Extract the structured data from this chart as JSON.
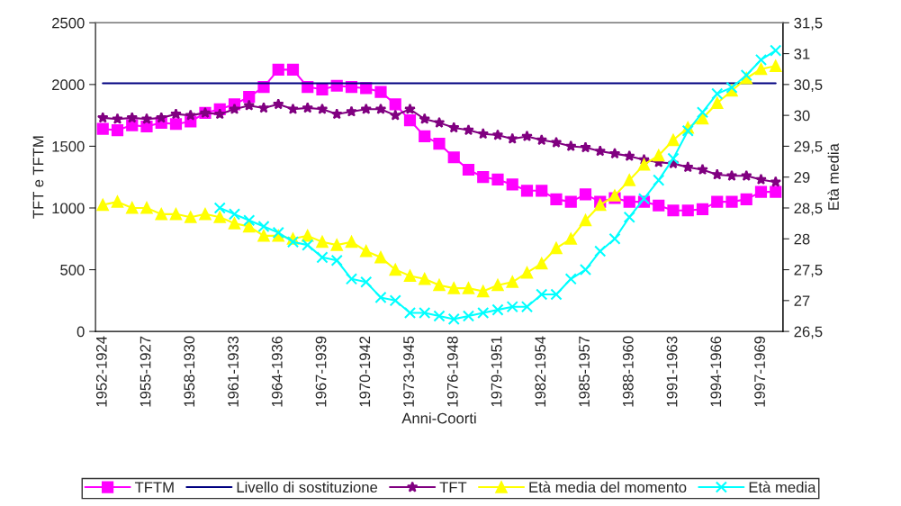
{
  "chart_data": {
    "type": "line",
    "xlabel": "Anni-Coorti",
    "ylabel": "TFT e TFTM",
    "y2label": "Età media",
    "categories": [
      "1952-1924",
      null,
      null,
      "1955-1927",
      null,
      null,
      "1958-1930",
      null,
      null,
      "1961-1933",
      null,
      null,
      "1964-1936",
      null,
      null,
      "1967-1939",
      null,
      null,
      "1970-1942",
      null,
      null,
      "1973-1945",
      null,
      null,
      "1976-1948",
      null,
      null,
      "1979-1951",
      null,
      null,
      "1982-1954",
      null,
      null,
      "1985-1957",
      null,
      null,
      "1988-1960",
      null,
      null,
      "1991-1963",
      null,
      null,
      "1994-1966",
      null,
      null,
      "1997-1969",
      null
    ],
    "ylim": [
      0,
      2500
    ],
    "yticks": [
      0,
      500,
      1000,
      1500,
      2000,
      2500
    ],
    "y2lim": [
      26.5,
      31.5
    ],
    "y2ticks": [
      {
        "value": 26.5,
        "label": "26,5"
      },
      27,
      {
        "value": 27.5,
        "label": "27,5"
      },
      28,
      {
        "value": 28.5,
        "label": "28,5"
      },
      29,
      {
        "value": 29.5,
        "label": "29,5"
      },
      30,
      {
        "value": 30.5,
        "label": "30,5"
      },
      31,
      {
        "value": 31.5,
        "label": "31,5"
      }
    ],
    "grid": false,
    "legend": "bottom",
    "series": [
      {
        "name": "TFTM",
        "color": "#ff00ff",
        "marker": "square",
        "values": [
          1640,
          1630,
          1670,
          1660,
          1690,
          1680,
          1700,
          1770,
          1800,
          1840,
          1900,
          1980,
          2120,
          2120,
          1980,
          1960,
          1990,
          1980,
          1970,
          1940,
          1840,
          1710,
          1580,
          1520,
          1410,
          1310,
          1250,
          1230,
          1190,
          1140,
          1140,
          1070,
          1050,
          1110,
          1050,
          1080,
          1050,
          1050,
          1020,
          980,
          980,
          990,
          1050,
          1050,
          1070,
          1130,
          1130
        ]
      },
      {
        "name": "Livello di sostituzione",
        "color": "#000080",
        "marker": "none",
        "values": [
          2010,
          2010,
          2010,
          2010,
          2010,
          2010,
          2010,
          2010,
          2010,
          2010,
          2010,
          2010,
          2010,
          2010,
          2010,
          2010,
          2010,
          2010,
          2010,
          2010,
          2010,
          2010,
          2010,
          2010,
          2010,
          2010,
          2010,
          2010,
          2010,
          2010,
          2010,
          2010,
          2010,
          2010,
          2010,
          2010,
          2010,
          2010,
          2010,
          2010,
          2010,
          2010,
          2010,
          2010,
          2010,
          2010,
          2010
        ]
      },
      {
        "name": "TFT",
        "color": "#800080",
        "marker": "star",
        "values": [
          1730,
          1720,
          1730,
          1720,
          1730,
          1760,
          1750,
          1770,
          1760,
          1800,
          1830,
          1810,
          1840,
          1800,
          1810,
          1800,
          1760,
          1780,
          1800,
          1800,
          1750,
          1800,
          1720,
          1690,
          1650,
          1630,
          1600,
          1590,
          1560,
          1580,
          1550,
          1530,
          1500,
          1490,
          1460,
          1440,
          1420,
          1390,
          1370,
          1360,
          1330,
          1310,
          1270,
          1260,
          1260,
          1230,
          1210
        ]
      },
      {
        "name": "Età media del momento",
        "color": "#ffff00",
        "marker": "triangle",
        "axis": "y2",
        "values": [
          28.55,
          28.6,
          28.5,
          28.5,
          28.4,
          28.4,
          28.35,
          28.4,
          28.35,
          28.25,
          28.2,
          28.05,
          28.05,
          28.0,
          28.05,
          27.95,
          27.9,
          27.95,
          27.8,
          27.7,
          27.5,
          27.4,
          27.35,
          27.25,
          27.2,
          27.2,
          27.15,
          27.25,
          27.3,
          27.45,
          27.6,
          27.85,
          28.0,
          28.3,
          28.55,
          28.7,
          28.95,
          29.2,
          29.35,
          29.6,
          29.8,
          29.95,
          30.2,
          30.4,
          30.6,
          30.75,
          30.8
        ]
      },
      {
        "name": "Età media",
        "color": "#00ffff",
        "marker": "cross",
        "axis": "y2",
        "values": [
          null,
          null,
          null,
          null,
          null,
          null,
          null,
          null,
          28.5,
          28.4,
          28.3,
          28.2,
          28.1,
          27.95,
          27.9,
          27.7,
          27.65,
          27.35,
          27.3,
          27.05,
          27.0,
          26.8,
          26.8,
          26.75,
          26.7,
          26.75,
          26.8,
          26.85,
          26.9,
          26.9,
          27.1,
          27.1,
          27.35,
          27.5,
          27.8,
          28.0,
          28.35,
          28.65,
          28.95,
          29.3,
          29.75,
          30.05,
          30.35,
          30.45,
          30.65,
          30.9,
          31.05
        ]
      }
    ]
  }
}
